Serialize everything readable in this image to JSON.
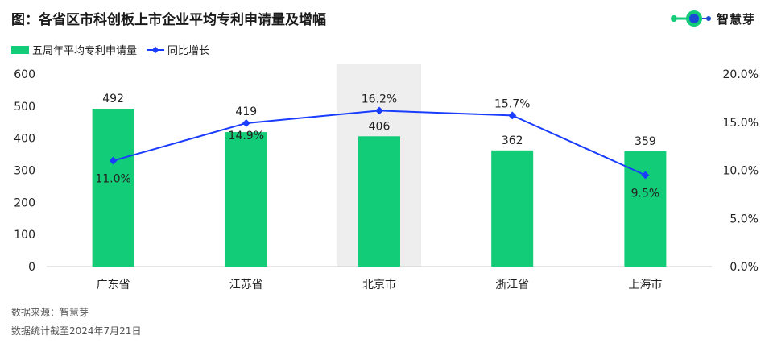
{
  "title": "图：各省区市科创板上市企业平均专利申请量及增幅",
  "logo": {
    "text": "智慧芽",
    "accent_color": "#12cc77",
    "dot_color": "#1a4bd6"
  },
  "legend": {
    "bar_label": "五周年平均专利申请量",
    "line_label": "同比增长"
  },
  "source": {
    "line1": "数据来源：智慧芽",
    "line2": "数据统计截至2024年7月21日"
  },
  "colors": {
    "bar": "#12cc77",
    "line": "#1a3cff",
    "highlight": "#eeeeee",
    "axis": "#cccccc"
  },
  "chart_data": {
    "type": "bar",
    "categories": [
      "广东省",
      "江苏省",
      "北京市",
      "浙江省",
      "上海市"
    ],
    "series": [
      {
        "name": "五周年平均专利申请量",
        "type": "bar",
        "axis": "left",
        "values": [
          492,
          419,
          406,
          362,
          359
        ]
      },
      {
        "name": "同比增长",
        "type": "line",
        "axis": "right",
        "values": [
          11.0,
          14.9,
          16.2,
          15.7,
          9.5
        ]
      }
    ],
    "bar_labels": [
      "492",
      "419",
      "406",
      "362",
      "359"
    ],
    "line_labels": [
      "11.0%",
      "14.9%",
      "16.2%",
      "15.7%",
      "9.5%"
    ],
    "ylim_left": [
      0,
      600
    ],
    "yticks_left": [
      "0",
      "100",
      "200",
      "300",
      "400",
      "500",
      "600"
    ],
    "ylim_right": [
      0,
      20
    ],
    "yticks_right": [
      "0.0%",
      "5.0%",
      "10.0%",
      "15.0%",
      "20.0%"
    ],
    "highlight_category": "北京市",
    "grid": false,
    "legend_position": "top-left"
  }
}
